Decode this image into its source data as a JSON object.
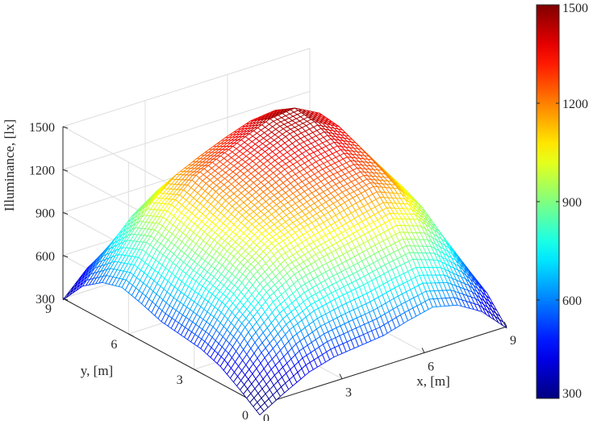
{
  "chart_data": {
    "type": "surface-mesh",
    "title": "",
    "xlabel": "x, [m]",
    "ylabel": "y, [m]",
    "zlabel": "Illuminance, [lx]",
    "xlim": [
      0,
      9
    ],
    "ylim": [
      0,
      9
    ],
    "zlim": [
      300,
      1500
    ],
    "xticks": [
      0,
      3,
      6,
      9
    ],
    "yticks": [
      0,
      3,
      6,
      9
    ],
    "zticks": [
      300,
      600,
      900,
      1200,
      1500
    ],
    "colormap": "jet",
    "clim": [
      300,
      1500
    ],
    "colorbar_ticks": [
      300,
      600,
      900,
      1200,
      1500
    ],
    "grid": true,
    "x": [
      0,
      0.9,
      1.8,
      2.7,
      3.6,
      4.5,
      5.4,
      6.3,
      7.2,
      8.1,
      9
    ],
    "y": [
      0,
      0.9,
      1.8,
      2.7,
      3.6,
      4.5,
      5.4,
      6.3,
      7.2,
      8.1,
      9
    ],
    "z": [
      [
        230,
        330,
        420,
        470,
        490,
        510,
        560,
        600,
        560,
        460,
        290
      ],
      [
        330,
        500,
        640,
        720,
        760,
        790,
        830,
        860,
        800,
        660,
        460
      ],
      [
        420,
        640,
        800,
        900,
        950,
        990,
        1030,
        1070,
        1010,
        840,
        560
      ],
      [
        470,
        720,
        900,
        1020,
        1080,
        1130,
        1180,
        1220,
        1150,
        960,
        610
      ],
      [
        490,
        760,
        950,
        1080,
        1160,
        1220,
        1270,
        1300,
        1230,
        1030,
        620
      ],
      [
        510,
        790,
        990,
        1130,
        1220,
        1300,
        1350,
        1380,
        1300,
        1080,
        620
      ],
      [
        560,
        830,
        1030,
        1180,
        1270,
        1350,
        1420,
        1450,
        1360,
        1120,
        610
      ],
      [
        600,
        860,
        1070,
        1220,
        1300,
        1380,
        1450,
        1470,
        1380,
        1130,
        590
      ],
      [
        560,
        800,
        1010,
        1150,
        1230,
        1300,
        1360,
        1380,
        1300,
        1060,
        540
      ],
      [
        460,
        660,
        840,
        960,
        1030,
        1080,
        1120,
        1130,
        1060,
        860,
        430
      ],
      [
        290,
        460,
        560,
        610,
        620,
        620,
        610,
        590,
        540,
        430,
        280
      ]
    ]
  }
}
